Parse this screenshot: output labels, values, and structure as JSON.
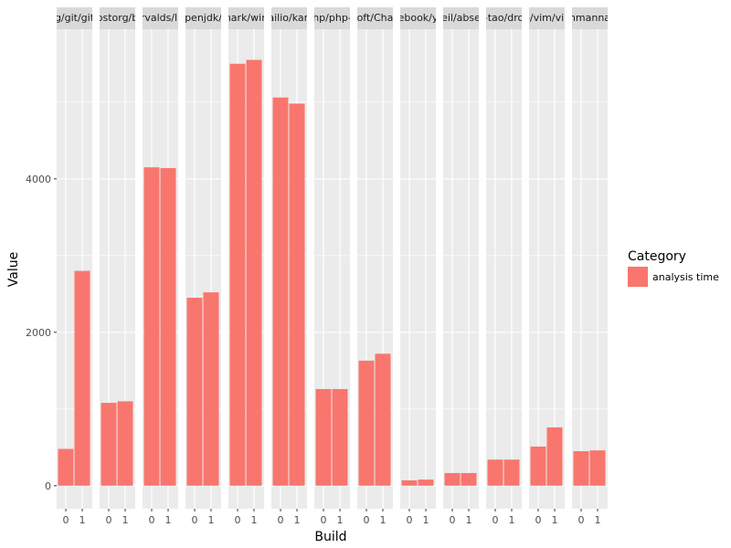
{
  "chart_data": {
    "type": "bar",
    "facet_by": "repository",
    "x_categories": [
      "0",
      "1"
    ],
    "xlabel": "Build",
    "ylabel": "Value",
    "ylim": [
      -300,
      5950
    ],
    "yticks": [
      0,
      2000,
      4000
    ],
    "y_tick_labels": [
      "0",
      "2000",
      "4000"
    ],
    "legend": {
      "title": "Category",
      "position": "right",
      "items": [
        {
          "label": "analysis time",
          "color": "#F8766D"
        }
      ]
    },
    "panel_bg": "#EBEBEB",
    "strip_bg": "#D9D9D9",
    "gridline_color": "#FFFFFF",
    "bar_color": "#F8766D",
    "facets": [
      {
        "label": "g/git/git",
        "values": [
          480,
          2800
        ]
      },
      {
        "label": "ostorg/b",
        "values": [
          1080,
          1100
        ]
      },
      {
        "label": "rvalds/li",
        "values": [
          4150,
          4140
        ]
      },
      {
        "label": "penjdk/",
        "values": [
          2450,
          2520
        ]
      },
      {
        "label": "hark/win",
        "values": [
          5500,
          5550
        ]
      },
      {
        "label": "ailio/kan",
        "values": [
          5060,
          4980
        ]
      },
      {
        "label": "hp/php-",
        "values": [
          1260,
          1260
        ]
      },
      {
        "label": "oft/Cha",
        "values": [
          1630,
          1720
        ]
      },
      {
        "label": "ebook/y",
        "values": [
          70,
          80
        ]
      },
      {
        "label": "eil/abse",
        "values": [
          165,
          165
        ]
      },
      {
        "label": "-tao/dro",
        "values": [
          340,
          340
        ]
      },
      {
        "label": "p/vim/vin",
        "values": [
          510,
          760
        ]
      },
      {
        "label": "hmanna",
        "values": [
          450,
          460
        ]
      }
    ]
  }
}
